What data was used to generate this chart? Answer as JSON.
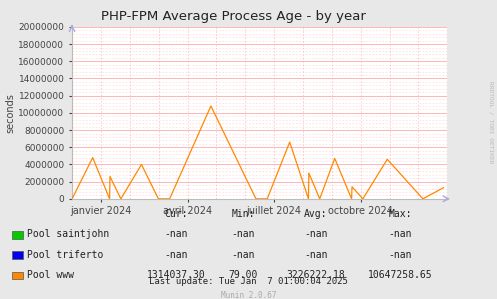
{
  "title": "PHP-FPM Average Process Age - by year",
  "ylabel": "seconds",
  "bg_color": "#e8e8e8",
  "plot_bg_color": "#ffffff",
  "grid_color_major": "#ffaaaa",
  "grid_color_minor": "#ffd0d0",
  "ylim": [
    0,
    20000000
  ],
  "yticks": [
    0,
    2000000,
    4000000,
    6000000,
    8000000,
    10000000,
    12000000,
    14000000,
    16000000,
    18000000,
    20000000
  ],
  "xtick_labels": [
    "janvier 2024",
    "avril 2024",
    "juillet 2024",
    "octobre 2024"
  ],
  "legend_entries": [
    {
      "label": "Pool saintjohn",
      "color": "#00cc00"
    },
    {
      "label": "Pool triferto",
      "color": "#0000ee"
    },
    {
      "label": "Pool www",
      "color": "#ff8800"
    }
  ],
  "stats_header": [
    "Cur:",
    "Min:",
    "Avg:",
    "Max:"
  ],
  "stats": [
    [
      "-nan",
      "-nan",
      "-nan",
      "-nan"
    ],
    [
      "-nan",
      "-nan",
      "-nan",
      "-nan"
    ],
    [
      "1314037.30",
      "79.00",
      "3226222.18",
      "10647258.65"
    ]
  ],
  "last_update": "Last update: Tue Jan  7 01:00:04 2025",
  "munin_version": "Munin 2.0.67",
  "watermark": "RRDTOOL / TOBI OETIKER",
  "www_data_x": [
    0.0,
    0.055,
    0.1,
    0.101,
    0.13,
    0.185,
    0.23,
    0.231,
    0.26,
    0.37,
    0.49,
    0.491,
    0.52,
    0.58,
    0.63,
    0.631,
    0.66,
    0.7,
    0.745,
    0.746,
    0.775,
    0.84,
    0.935,
    0.99
  ],
  "www_data_y": [
    0,
    4800000,
    0,
    2600000,
    0,
    4000000,
    0,
    0,
    0,
    10800000,
    0,
    0,
    0,
    6600000,
    0,
    3000000,
    0,
    4700000,
    0,
    1400000,
    0,
    4600000,
    0,
    1300000
  ]
}
